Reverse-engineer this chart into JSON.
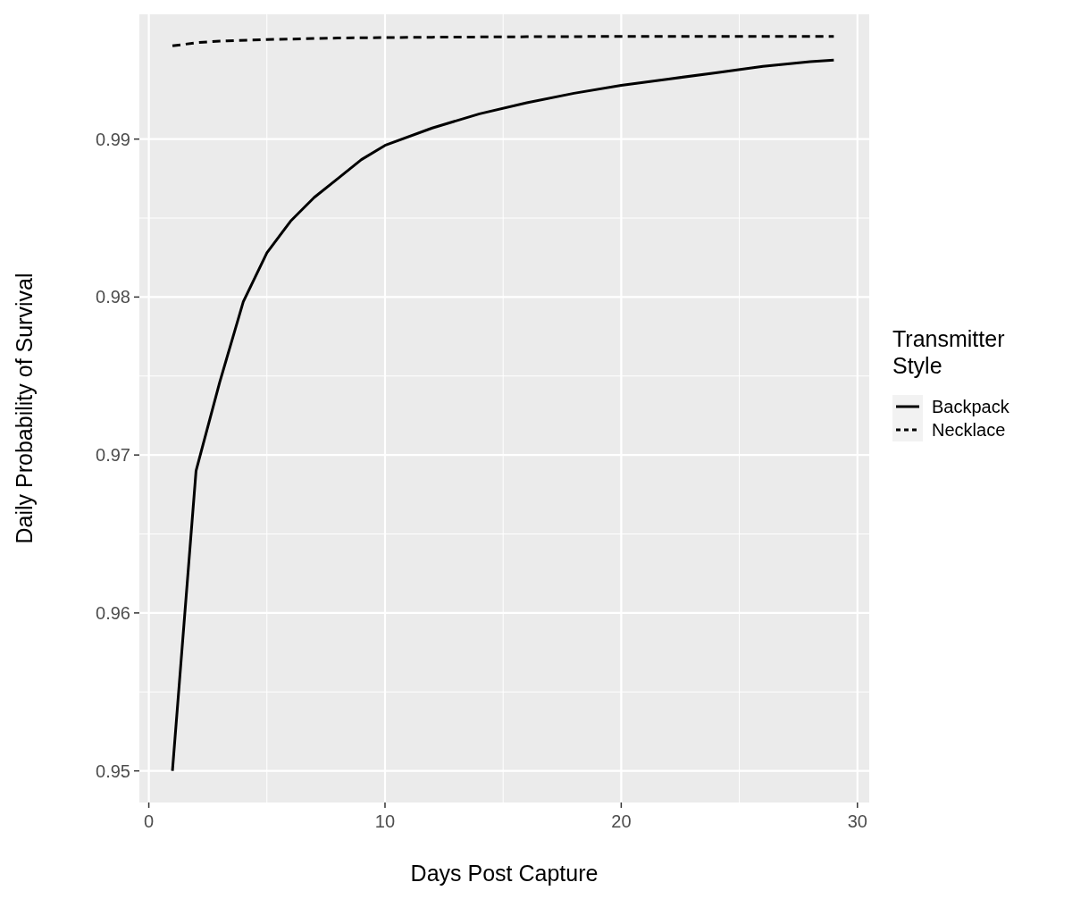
{
  "chart_data": {
    "type": "line",
    "xlabel": "Days Post Capture",
    "ylabel": "Daily Probability of Survival",
    "legend_title": "Transmitter Style",
    "legend": "right",
    "grid": true,
    "xlim": [
      -0.4,
      30.5
    ],
    "xticks": [
      0,
      10,
      20,
      30
    ],
    "ylim": [
      0.948,
      0.9979
    ],
    "yticks": [
      0.95,
      0.96,
      0.97,
      0.98,
      0.99
    ],
    "series": [
      {
        "name": "Backpack",
        "color": "#000000",
        "line_style": "solid",
        "x": [
          1,
          2,
          3,
          4,
          5,
          6,
          7,
          8,
          9,
          10,
          12,
          14,
          16,
          18,
          20,
          22,
          24,
          26,
          28,
          29
        ],
        "values": [
          0.95,
          0.969,
          0.9746,
          0.9797,
          0.9828,
          0.9848,
          0.9863,
          0.9875,
          0.9887,
          0.9896,
          0.9907,
          0.9916,
          0.9923,
          0.9929,
          0.9934,
          0.9938,
          0.9942,
          0.9946,
          0.9949,
          0.995
        ]
      },
      {
        "name": "Necklace",
        "color": "#000000",
        "line_style": "dashed",
        "x": [
          1,
          2,
          3,
          5,
          8,
          12,
          16,
          20,
          25,
          29
        ],
        "values": [
          0.9959,
          0.9961,
          0.9962,
          0.9963,
          0.9964,
          0.99645,
          0.99648,
          0.9965,
          0.9965,
          0.9965
        ]
      }
    ]
  }
}
